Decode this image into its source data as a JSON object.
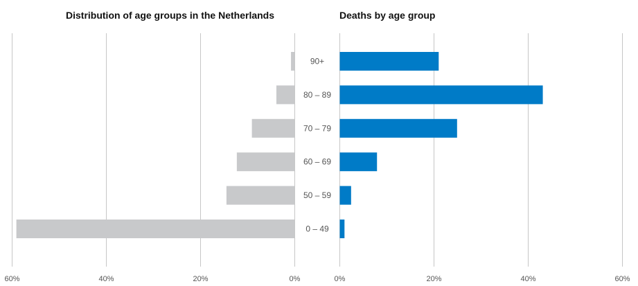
{
  "chart_data": [
    {
      "type": "bar",
      "orientation": "horizontal",
      "direction": "right-to-left",
      "title": "Distribution of age groups in the Netherlands",
      "categories": [
        "90+",
        "80 – 89",
        "70 – 79",
        "60 – 69",
        "50 – 59",
        "0 – 49"
      ],
      "values": [
        0.8,
        3.9,
        9.1,
        12.3,
        14.5,
        59.1
      ],
      "unit": "%",
      "xlim": [
        0,
        60
      ],
      "xticks": [
        "60%",
        "40%",
        "20%",
        "0%"
      ],
      "tick_values": [
        60,
        40,
        20,
        0
      ],
      "color": "#c8c9cb",
      "grid": true
    },
    {
      "type": "bar",
      "orientation": "horizontal",
      "direction": "left-to-right",
      "title": "Deaths by age group",
      "categories": [
        "90+",
        "80 – 89",
        "70 – 79",
        "60 – 69",
        "50 – 59",
        "0 – 49"
      ],
      "values": [
        21.0,
        43.1,
        24.9,
        7.9,
        2.4,
        1.0
      ],
      "unit": "%",
      "xlim": [
        0,
        60
      ],
      "xticks": [
        "0%",
        "20%",
        "40%",
        "60%"
      ],
      "tick_values": [
        0,
        20,
        40,
        60
      ],
      "color": "#007bc7",
      "grid": true
    }
  ]
}
